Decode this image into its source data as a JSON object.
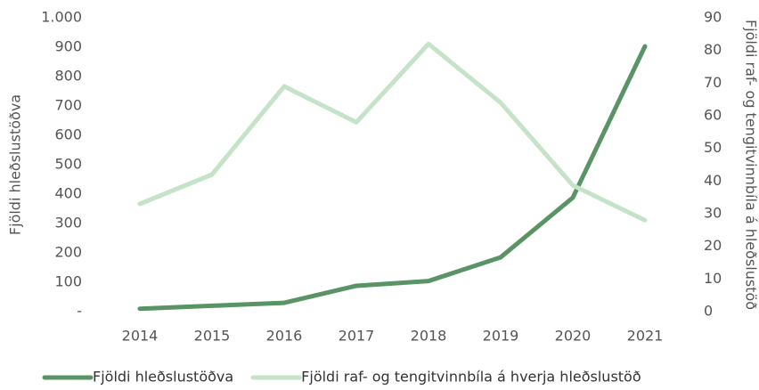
{
  "chart_data": {
    "type": "line",
    "categories": [
      "2014",
      "2015",
      "2016",
      "2017",
      "2018",
      "2019",
      "2020",
      "2021"
    ],
    "ylabel": "Fjöldi hleðslustöðva",
    "y2label": "Fjöldi raf- og tengitvinnbíla á hleðslustöð",
    "ylim": [
      0,
      1000
    ],
    "yticks": [
      {
        "value": 0,
        "label": "-"
      },
      100,
      200,
      300,
      400,
      500,
      600,
      700,
      800,
      900,
      {
        "value": 1000,
        "label": "1.000"
      }
    ],
    "y2lim": [
      0,
      90
    ],
    "y2ticks": [
      0,
      10,
      20,
      30,
      40,
      50,
      60,
      70,
      80,
      90
    ],
    "grid": false,
    "legend": "bottom",
    "series": [
      {
        "name": "Fjöldi hleðslustöðva",
        "color": "#5a9466",
        "values": [
          10,
          20,
          30,
          88,
          104,
          185,
          388,
          903
        ]
      },
      {
        "name": "Fjöldi raf- og tengitvinnbíla á hverja hleðslustöð",
        "color": "#c5e3c8",
        "axis": "y2",
        "values": [
          33,
          42,
          69,
          58,
          82,
          64,
          38.7,
          28
        ]
      }
    ]
  }
}
